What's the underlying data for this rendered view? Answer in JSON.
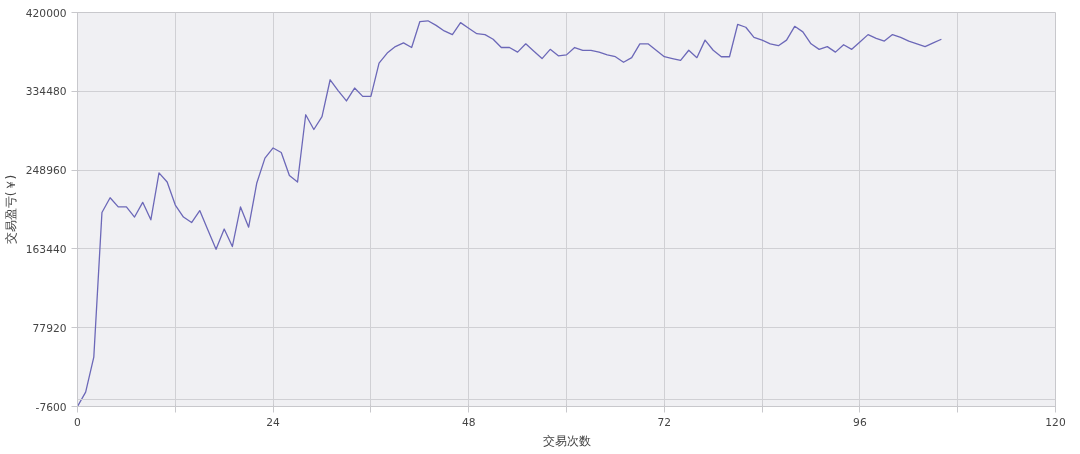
{
  "chart_data": {
    "type": "line",
    "xlabel": "交易次数",
    "ylabel": "交易盈亏(￥)",
    "xlim": [
      0,
      120
    ],
    "ylim": [
      -7600,
      420000
    ],
    "xticks": [
      0,
      {
        "value": 12,
        "label": null
      },
      24,
      {
        "value": 36,
        "label": null
      },
      48,
      {
        "value": 60,
        "label": null
      },
      72,
      {
        "value": 84,
        "label": null
      },
      96,
      {
        "value": 108,
        "label": null
      },
      120
    ],
    "yticks": [
      -7600,
      77920,
      163440,
      248960,
      334480,
      420000
    ],
    "ref_lines": [
      {
        "axis": "y",
        "value": 0,
        "label": null,
        "color": "#d0d0d4"
      }
    ],
    "grid": true,
    "marker": "none",
    "line_style": "solid",
    "series": [
      {
        "color": "#6c68b8",
        "x": [
          0,
          1,
          2,
          3,
          4,
          5,
          6,
          7,
          8,
          9,
          10,
          11,
          12,
          13,
          14,
          15,
          16,
          17,
          18,
          19,
          20,
          21,
          22,
          23,
          24,
          25,
          26,
          27,
          28,
          29,
          30,
          31,
          32,
          33,
          34,
          35,
          36,
          37,
          38,
          39,
          40,
          41,
          42,
          43,
          44,
          45,
          46,
          47,
          48,
          49,
          50,
          51,
          52,
          53,
          54,
          55,
          56,
          57,
          58,
          59,
          60,
          61,
          62,
          63,
          64,
          65,
          66,
          67,
          68,
          69,
          70,
          71,
          72,
          73,
          74,
          75,
          76,
          77,
          78,
          79,
          80,
          81,
          82,
          83,
          84,
          85,
          86,
          87,
          88,
          89,
          90,
          91,
          92,
          93,
          94,
          95,
          96,
          97,
          98,
          99,
          100,
          101,
          102,
          103,
          104,
          105,
          106
        ],
        "values": [
          -7600,
          8000,
          46000,
          203000,
          219000,
          209000,
          209000,
          198000,
          214000,
          195000,
          246000,
          236000,
          211000,
          198000,
          192000,
          205000,
          184000,
          163000,
          185000,
          166000,
          209000,
          187000,
          235000,
          262000,
          273000,
          268000,
          243000,
          236000,
          309000,
          293000,
          307000,
          347000,
          335000,
          324000,
          338000,
          329000,
          329000,
          365000,
          376000,
          383000,
          387000,
          382000,
          410000,
          411000,
          406000,
          400000,
          396000,
          409000,
          403000,
          397000,
          396000,
          391000,
          382000,
          382000,
          377000,
          386000,
          378000,
          370000,
          380000,
          373000,
          374000,
          382000,
          379000,
          379000,
          377000,
          374000,
          372000,
          366000,
          371000,
          386000,
          386000,
          379000,
          372000,
          370000,
          368000,
          379000,
          371000,
          390000,
          379000,
          372000,
          372000,
          407000,
          404000,
          393000,
          390000,
          386000,
          384000,
          390000,
          405000,
          399000,
          386000,
          380000,
          383000,
          377000,
          385000,
          380000,
          388000,
          396000,
          392000,
          389000,
          396000,
          393000,
          389000,
          386000,
          383000,
          387000,
          391000
        ]
      }
    ]
  }
}
